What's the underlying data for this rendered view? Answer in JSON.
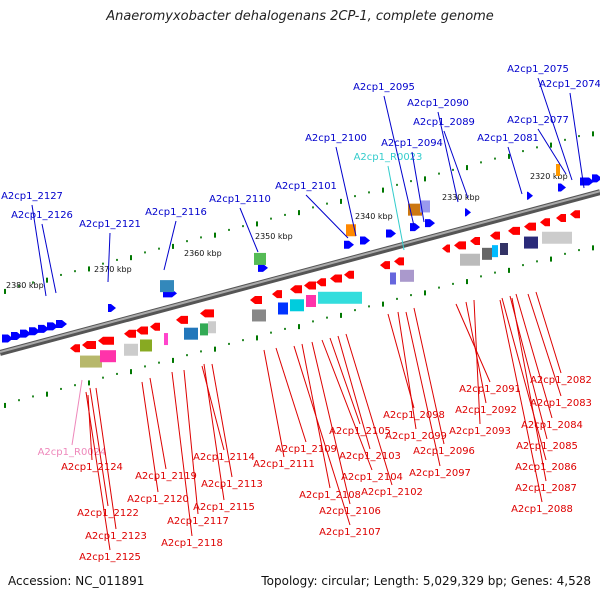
{
  "title": "Anaeromyxobacter dehalogenans 2CP-1, complete genome",
  "accession": "Accession: NC_011891",
  "topology": "Topology: circular; Length: 5,029,329 bp; Genes: 4,528",
  "colors": {
    "genome_line": "#7f7f7f",
    "forward_gene": "#0000ff",
    "reverse_gene": "#ff0000",
    "trna_label_forward": "#33cccc",
    "trna_label_reverse": "#ee88bb",
    "tick_green": "#007700"
  },
  "scale_labels": [
    "2380 kbp",
    "2370 kbp",
    "2360 kbp",
    "2350 kbp",
    "2340 kbp",
    "2330 kbp",
    "2320 kbp"
  ],
  "labels_top": [
    {
      "text": "A2cp1_2127",
      "color": "#0000cc"
    },
    {
      "text": "A2cp1_2126",
      "color": "#0000cc"
    },
    {
      "text": "A2cp1_2121",
      "color": "#0000cc"
    },
    {
      "text": "A2cp1_2116",
      "color": "#0000cc"
    },
    {
      "text": "A2cp1_2110",
      "color": "#0000cc"
    },
    {
      "text": "A2cp1_2101",
      "color": "#0000cc"
    },
    {
      "text": "A2cp1_2100",
      "color": "#0000cc"
    },
    {
      "text": "A2cp1_R0023",
      "color": "#33cccc"
    },
    {
      "text": "A2cp1_2095",
      "color": "#0000cc"
    },
    {
      "text": "A2cp1_2094",
      "color": "#0000cc"
    },
    {
      "text": "A2cp1_2090",
      "color": "#0000cc"
    },
    {
      "text": "A2cp1_2089",
      "color": "#0000cc"
    },
    {
      "text": "A2cp1_2081",
      "color": "#0000cc"
    },
    {
      "text": "A2cp1_2077",
      "color": "#0000cc"
    },
    {
      "text": "A2cp1_2075",
      "color": "#0000cc"
    },
    {
      "text": "A2cp1_2074",
      "color": "#0000cc"
    }
  ],
  "labels_bottom": [
    {
      "text": "A2cp1_R0024",
      "color": "#ee88bb"
    },
    {
      "text": "A2cp1_2124",
      "color": "#dd0000"
    },
    {
      "text": "A2cp1_2119",
      "color": "#dd0000"
    },
    {
      "text": "A2cp1_2120",
      "color": "#dd0000"
    },
    {
      "text": "A2cp1_2122",
      "color": "#dd0000"
    },
    {
      "text": "A2cp1_2123",
      "color": "#dd0000"
    },
    {
      "text": "A2cp1_2125",
      "color": "#dd0000"
    },
    {
      "text": "A2cp1_2114",
      "color": "#dd0000"
    },
    {
      "text": "A2cp1_2113",
      "color": "#dd0000"
    },
    {
      "text": "A2cp1_2115",
      "color": "#dd0000"
    },
    {
      "text": "A2cp1_2117",
      "color": "#dd0000"
    },
    {
      "text": "A2cp1_2118",
      "color": "#dd0000"
    },
    {
      "text": "A2cp1_2109",
      "color": "#dd0000"
    },
    {
      "text": "A2cp1_2111",
      "color": "#dd0000"
    },
    {
      "text": "A2cp1_2108",
      "color": "#dd0000"
    },
    {
      "text": "A2cp1_2106",
      "color": "#dd0000"
    },
    {
      "text": "A2cp1_2107",
      "color": "#dd0000"
    },
    {
      "text": "A2cp1_2105",
      "color": "#dd0000"
    },
    {
      "text": "A2cp1_2103",
      "color": "#dd0000"
    },
    {
      "text": "A2cp1_2104",
      "color": "#dd0000"
    },
    {
      "text": "A2cp1_2102",
      "color": "#dd0000"
    },
    {
      "text": "A2cp1_2098",
      "color": "#dd0000"
    },
    {
      "text": "A2cp1_2099",
      "color": "#dd0000"
    },
    {
      "text": "A2cp1_2096",
      "color": "#dd0000"
    },
    {
      "text": "A2cp1_2097",
      "color": "#dd0000"
    },
    {
      "text": "A2cp1_2091",
      "color": "#dd0000"
    },
    {
      "text": "A2cp1_2092",
      "color": "#dd0000"
    },
    {
      "text": "A2cp1_2093",
      "color": "#dd0000"
    },
    {
      "text": "A2cp1_2082",
      "color": "#dd0000"
    },
    {
      "text": "A2cp1_2083",
      "color": "#dd0000"
    },
    {
      "text": "A2cp1_2084",
      "color": "#dd0000"
    },
    {
      "text": "A2cp1_2085",
      "color": "#dd0000"
    },
    {
      "text": "A2cp1_2086",
      "color": "#dd0000"
    },
    {
      "text": "A2cp1_2087",
      "color": "#dd0000"
    },
    {
      "text": "A2cp1_2088",
      "color": "#dd0000"
    }
  ]
}
